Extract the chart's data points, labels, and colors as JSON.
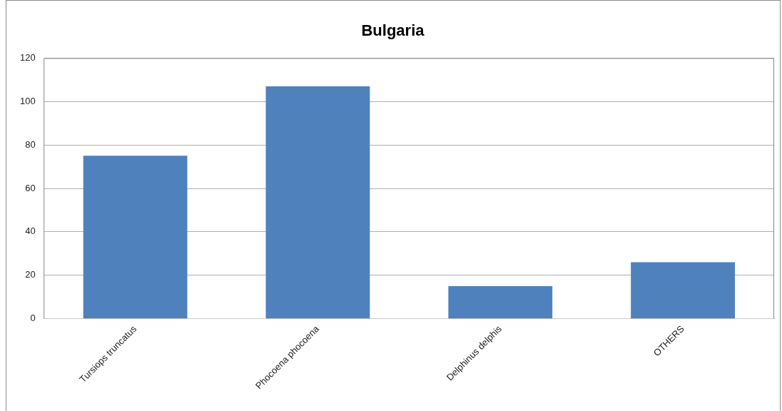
{
  "chart_data": {
    "type": "bar",
    "title": "Bulgaria",
    "categories": [
      "Tursiops truncatus",
      "Phocoena phocoena",
      "Delphinus delphis",
      "OTHERS"
    ],
    "values": [
      75,
      107,
      15,
      26
    ],
    "color": "#4f81bd",
    "ylim": [
      0,
      120
    ],
    "yticks": [
      0,
      20,
      40,
      60,
      80,
      100,
      120
    ],
    "grid": "y"
  }
}
